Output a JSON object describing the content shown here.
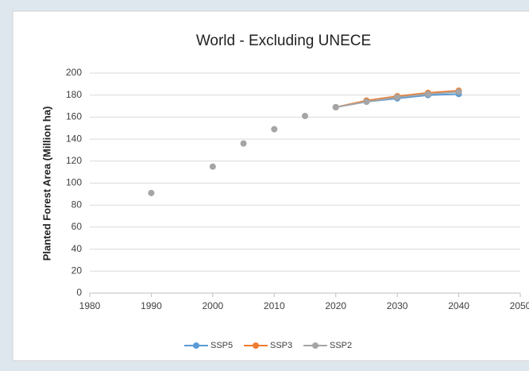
{
  "chart_data": {
    "type": "line",
    "title": "World - Excluding UNECE",
    "y_label": "Planted Forest Area (Million ha)",
    "series": [
      {
        "name": "SSP5",
        "color": "#5b9bd5",
        "x": [
          2020,
          2025,
          2030,
          2035,
          2040
        ],
        "values": [
          169,
          174,
          177,
          180,
          181
        ]
      },
      {
        "name": "SSP3",
        "color": "#ed7d31",
        "x": [
          2020,
          2025,
          2030,
          2035,
          2040
        ],
        "values": [
          169,
          175,
          179,
          182,
          184
        ]
      },
      {
        "name": "SSP2",
        "color": "#a5a5a5",
        "x": [
          2020,
          2025,
          2030,
          2035,
          2040
        ],
        "values": [
          169,
          174,
          178,
          181,
          183
        ]
      },
      {
        "color": "#a5a5a5",
        "line": false,
        "x": [
          1990,
          2000,
          2005,
          2010,
          2015
        ],
        "values": [
          91,
          115,
          136,
          149,
          161
        ]
      }
    ],
    "xlim": [
      1980,
      2050
    ],
    "xticks": [
      1980,
      1990,
      2000,
      2010,
      2020,
      2030,
      2040,
      2050
    ],
    "ylim": [
      0,
      200
    ],
    "yticks": [
      0,
      20,
      40,
      60,
      80,
      100,
      120,
      140,
      160,
      180,
      200
    ],
    "grid": true,
    "legend": "bottom"
  }
}
